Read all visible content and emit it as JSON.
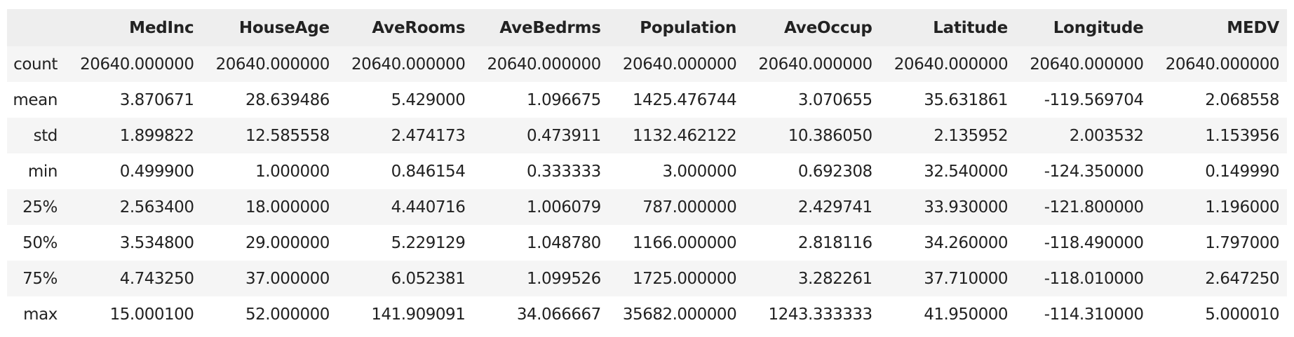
{
  "table": {
    "index_header": "",
    "columns": [
      "MedInc",
      "HouseAge",
      "AveRooms",
      "AveBedrms",
      "Population",
      "AveOccup",
      "Latitude",
      "Longitude",
      "MEDV"
    ],
    "rows": [
      {
        "label": "count",
        "values": [
          "20640.000000",
          "20640.000000",
          "20640.000000",
          "20640.000000",
          "20640.000000",
          "20640.000000",
          "20640.000000",
          "20640.000000",
          "20640.000000"
        ]
      },
      {
        "label": "mean",
        "values": [
          "3.870671",
          "28.639486",
          "5.429000",
          "1.096675",
          "1425.476744",
          "3.070655",
          "35.631861",
          "-119.569704",
          "2.068558"
        ]
      },
      {
        "label": "std",
        "values": [
          "1.899822",
          "12.585558",
          "2.474173",
          "0.473911",
          "1132.462122",
          "10.386050",
          "2.135952",
          "2.003532",
          "1.153956"
        ]
      },
      {
        "label": "min",
        "values": [
          "0.499900",
          "1.000000",
          "0.846154",
          "0.333333",
          "3.000000",
          "0.692308",
          "32.540000",
          "-124.350000",
          "0.149990"
        ]
      },
      {
        "label": "25%",
        "values": [
          "2.563400",
          "18.000000",
          "4.440716",
          "1.006079",
          "787.000000",
          "2.429741",
          "33.930000",
          "-121.800000",
          "1.196000"
        ]
      },
      {
        "label": "50%",
        "values": [
          "3.534800",
          "29.000000",
          "5.229129",
          "1.048780",
          "1166.000000",
          "2.818116",
          "34.260000",
          "-118.490000",
          "1.797000"
        ]
      },
      {
        "label": "75%",
        "values": [
          "4.743250",
          "37.000000",
          "6.052381",
          "1.099526",
          "1725.000000",
          "3.282261",
          "37.710000",
          "-118.010000",
          "2.647250"
        ]
      },
      {
        "label": "max",
        "values": [
          "15.000100",
          "52.000000",
          "141.909091",
          "34.066667",
          "35682.000000",
          "1243.333333",
          "41.950000",
          "-114.310000",
          "5.000010"
        ]
      }
    ]
  },
  "colors": {
    "header_bg": "#eeeeee",
    "stripe_bg": "#f5f5f5",
    "text": "#222222"
  }
}
